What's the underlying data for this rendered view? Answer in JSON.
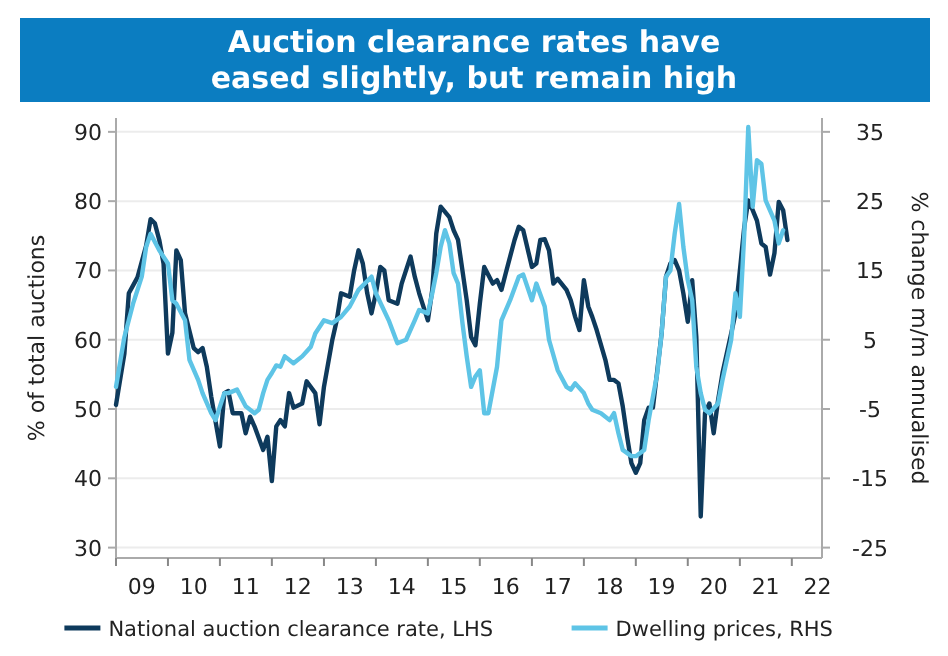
{
  "chart_data": {
    "type": "line",
    "title": "Auction clearance rates have eased slightly, but remain high",
    "ylabel": "% of total auctions",
    "y2label": "% change m/m annualised",
    "xlim": [
      "2009-01",
      "2022-08"
    ],
    "xticks": [
      {
        "value": "2009",
        "label": null
      },
      {
        "value": "2009-07",
        "label": "09"
      },
      {
        "value": "2010",
        "label": null
      },
      {
        "value": "2010-07",
        "label": "10"
      },
      {
        "value": "2011",
        "label": null
      },
      {
        "value": "2011-07",
        "label": "11"
      },
      {
        "value": "2012",
        "label": null
      },
      {
        "value": "2012-07",
        "label": "12"
      },
      {
        "value": "2013",
        "label": null
      },
      {
        "value": "2013-07",
        "label": "13"
      },
      {
        "value": "2014",
        "label": null
      },
      {
        "value": "2014-07",
        "label": "14"
      },
      {
        "value": "2015",
        "label": null
      },
      {
        "value": "2015-07",
        "label": "15"
      },
      {
        "value": "2016",
        "label": null
      },
      {
        "value": "2016-07",
        "label": "16"
      },
      {
        "value": "2017",
        "label": null
      },
      {
        "value": "2017-07",
        "label": "17"
      },
      {
        "value": "2018",
        "label": null
      },
      {
        "value": "2018-07",
        "label": "18"
      },
      {
        "value": "2019",
        "label": null
      },
      {
        "value": "2019-07",
        "label": "19"
      },
      {
        "value": "2020",
        "label": null
      },
      {
        "value": "2020-07",
        "label": "20"
      },
      {
        "value": "2021",
        "label": null
      },
      {
        "value": "2021-07",
        "label": "21"
      },
      {
        "value": "2022",
        "label": null
      },
      {
        "value": "2022-07",
        "label": "22"
      }
    ],
    "ylim": [
      28.5,
      92
    ],
    "yticks": [
      30,
      40,
      50,
      60,
      70,
      80,
      90
    ],
    "y2lim": [
      -26.5,
      37
    ],
    "y2ticks": [
      -25,
      -15,
      -5,
      5,
      15,
      25,
      35
    ],
    "grid": "y",
    "legend": "bottom",
    "line_style": "solid",
    "marker": "none",
    "series": [
      {
        "name": "National auction clearance rate, LHS",
        "color": "#0e3a5c",
        "x": [
          "2009-01",
          "2009-03",
          "2009-04",
          "2009-06",
          "2009-08",
          "2009-09",
          "2009-10",
          "2009-11",
          "2009-12",
          "2010-01",
          "2010-02",
          "2010-03",
          "2010-04",
          "2010-05",
          "2010-07",
          "2010-08",
          "2010-09",
          "2010-10",
          "2010-11",
          "2011-01",
          "2011-02",
          "2011-03",
          "2011-04",
          "2011-06",
          "2011-07",
          "2011-08",
          "2011-09",
          "2011-11",
          "2011-12",
          "2012-01",
          "2012-02",
          "2012-03",
          "2012-04",
          "2012-05",
          "2012-06",
          "2012-08",
          "2012-09",
          "2012-11",
          "2012-12",
          "2013-01",
          "2013-03",
          "2013-04",
          "2013-05",
          "2013-07",
          "2013-08",
          "2013-09",
          "2013-10",
          "2013-11",
          "2013-12",
          "2014-01",
          "2014-02",
          "2014-03",
          "2014-04",
          "2014-06",
          "2014-07",
          "2014-09",
          "2014-10",
          "2014-11",
          "2015-01",
          "2015-02",
          "2015-03",
          "2015-04",
          "2015-06",
          "2015-07",
          "2015-08",
          "2015-10",
          "2015-11",
          "2015-12",
          "2016-01",
          "2016-02",
          "2016-04",
          "2016-05",
          "2016-06",
          "2016-07",
          "2016-09",
          "2016-10",
          "2016-11",
          "2017-01",
          "2017-02",
          "2017-03",
          "2017-04",
          "2017-05",
          "2017-06",
          "2017-07",
          "2017-09",
          "2017-10",
          "2017-11",
          "2017-12",
          "2018-01",
          "2018-02",
          "2018-03",
          "2018-04",
          "2018-06",
          "2018-07",
          "2018-08",
          "2018-09",
          "2018-10",
          "2018-11",
          "2018-12",
          "2019-01",
          "2019-02",
          "2019-03",
          "2019-04",
          "2019-05",
          "2019-06",
          "2019-07",
          "2019-08",
          "2019-09",
          "2019-10",
          "2019-11",
          "2019-12",
          "2020-01",
          "2020-02",
          "2020-03",
          "2020-04",
          "2020-05",
          "2020-06",
          "2020-07",
          "2020-08",
          "2020-09",
          "2020-10",
          "2020-11",
          "2020-12",
          "2021-01",
          "2021-02",
          "2021-03",
          "2021-04",
          "2021-05",
          "2021-06",
          "2021-07",
          "2021-08",
          "2021-09",
          "2021-10",
          "2021-11",
          "2021-12"
        ],
        "values": [
          50.6,
          58,
          66.7,
          69,
          73.6,
          77.4,
          76.8,
          74.4,
          71,
          58,
          61,
          72.9,
          71.5,
          63.8,
          58.8,
          58.2,
          58.8,
          56.1,
          51.8,
          44.6,
          52.3,
          52.6,
          49.4,
          49.4,
          46.5,
          48.9,
          47.5,
          44.1,
          46,
          39.6,
          47.5,
          48.4,
          47.5,
          52.3,
          50.2,
          50.8,
          54,
          52.3,
          47.8,
          53.2,
          60,
          62.8,
          66.7,
          66.2,
          70,
          72.9,
          71,
          66.7,
          63.8,
          66.7,
          70.5,
          70,
          65.7,
          65.2,
          68.1,
          72,
          69.1,
          66.7,
          62.8,
          67.2,
          75.3,
          79.2,
          77.7,
          75.8,
          74.4,
          65.7,
          60.4,
          59.2,
          65.2,
          70.5,
          68.1,
          68.6,
          67.2,
          69.6,
          74.4,
          76.3,
          75.8,
          70.5,
          71,
          74.4,
          74.5,
          72.9,
          68.1,
          68.8,
          67.2,
          65.7,
          63.3,
          61.4,
          68.6,
          64.8,
          63.3,
          61.4,
          57.1,
          54.2,
          54.2,
          53.7,
          50.4,
          46,
          42.2,
          40.8,
          42.2,
          48.4,
          50.2,
          50.2,
          55.6,
          60.9,
          69.1,
          71,
          71.5,
          70,
          66.7,
          62.6,
          68.6,
          60.4,
          34.5,
          49.4,
          50.8,
          46.5,
          51.3,
          55.2,
          58,
          60.9,
          63.8,
          70,
          76.3,
          80.1,
          78.7,
          77.2,
          73.9,
          73.4,
          69.4,
          72.5,
          79.9,
          78.7,
          74.4
        ]
      },
      {
        "name": "Dwelling prices, RHS",
        "color": "#5ec4e6",
        "axis": "y2",
        "x": [
          "2009-01",
          "2009-03",
          "2009-05",
          "2009-07",
          "2009-08",
          "2009-09",
          "2009-11",
          "2010-01",
          "2010-02",
          "2010-03",
          "2010-05",
          "2010-06",
          "2010-08",
          "2010-09",
          "2010-11",
          "2010-12",
          "2011-02",
          "2011-03",
          "2011-05",
          "2011-07",
          "2011-09",
          "2011-10",
          "2011-11",
          "2011-12",
          "2012-01",
          "2012-02",
          "2012-03",
          "2012-04",
          "2012-06",
          "2012-08",
          "2012-10",
          "2012-11",
          "2013-01",
          "2013-03",
          "2013-05",
          "2013-07",
          "2013-09",
          "2013-12",
          "2014-01",
          "2014-04",
          "2014-06",
          "2014-08",
          "2014-10",
          "2014-11",
          "2015-01",
          "2015-02",
          "2015-03",
          "2015-04",
          "2015-05",
          "2015-06",
          "2015-07",
          "2015-08",
          "2015-09",
          "2015-10",
          "2015-11",
          "2015-12",
          "2016-01",
          "2016-02",
          "2016-03",
          "2016-05",
          "2016-06",
          "2016-08",
          "2016-10",
          "2016-11",
          "2017-01",
          "2017-02",
          "2017-04",
          "2017-05",
          "2017-07",
          "2017-09",
          "2017-10",
          "2017-11",
          "2018-01",
          "2018-02",
          "2018-03",
          "2018-05",
          "2018-07",
          "2018-08",
          "2018-09",
          "2018-10",
          "2018-12",
          "2019-01",
          "2019-03",
          "2019-04",
          "2019-06",
          "2019-07",
          "2019-08",
          "2019-09",
          "2019-10",
          "2019-11",
          "2019-12",
          "2020-01",
          "2020-02",
          "2020-03",
          "2020-04",
          "2020-05",
          "2020-06",
          "2020-08",
          "2020-09",
          "2020-11",
          "2020-12",
          "2021-01",
          "2021-02",
          "2021-03",
          "2021-04",
          "2021-05",
          "2021-06",
          "2021-07",
          "2021-09",
          "2021-10",
          "2021-11"
        ],
        "values": [
          -1.8,
          5.4,
          10.2,
          14.1,
          18.4,
          20.3,
          17.9,
          16,
          10.7,
          10.2,
          7.8,
          2.1,
          -0.8,
          -2.7,
          -5.6,
          -6.6,
          -2.7,
          -2.7,
          -2.2,
          -4.6,
          -5.6,
          -5.1,
          -2.7,
          -0.8,
          0.2,
          1.3,
          1.1,
          2.6,
          1.6,
          2.6,
          4,
          5.9,
          7.8,
          7.4,
          8.3,
          9.8,
          12.2,
          14.1,
          11.7,
          7.8,
          4.5,
          5,
          7.8,
          9.3,
          8.8,
          11.7,
          14.6,
          18.4,
          20.8,
          18.9,
          14.6,
          13.1,
          7.4,
          2.6,
          -1.8,
          -0.3,
          0.6,
          -5.6,
          -5.6,
          1.1,
          7.8,
          10.7,
          14.1,
          14.4,
          10.7,
          13.1,
          9.8,
          5,
          0.6,
          -1.8,
          -2.2,
          -1.3,
          -2.7,
          -4.2,
          -5.1,
          -5.6,
          -6.6,
          -5.6,
          -8.5,
          -10.9,
          -11.8,
          -11.8,
          -10.9,
          -6.6,
          0.2,
          5.9,
          14.1,
          15,
          20.3,
          24.6,
          18.4,
          13.6,
          10.7,
          1.1,
          -2.7,
          -5.1,
          -5.6,
          -4.2,
          -0.8,
          5,
          11.7,
          8.3,
          20.3,
          35.7,
          24.2,
          30.9,
          30.4,
          25.1,
          22.2,
          18.9,
          20.8
        ]
      }
    ]
  }
}
